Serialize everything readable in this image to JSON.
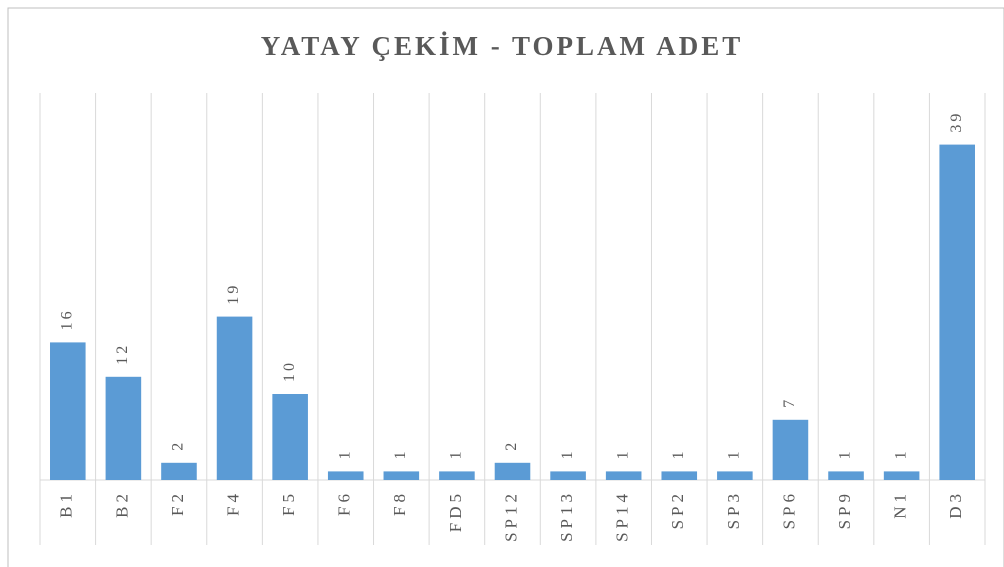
{
  "chart_data": {
    "type": "bar",
    "title": "YATAY ÇEKİM - TOPLAM ADET",
    "categories": [
      "B1",
      "B2",
      "F2",
      "F4",
      "F5",
      "F6",
      "F8",
      "FD5",
      "SP12",
      "SP13",
      "SP14",
      "SP2",
      "SP3",
      "SP6",
      "SP9",
      "N1",
      "D3"
    ],
    "values": [
      16,
      12,
      2,
      19,
      10,
      1,
      1,
      1,
      2,
      1,
      1,
      1,
      1,
      7,
      1,
      1,
      39
    ],
    "color": "#5b9bd5",
    "ylim": [
      0,
      45
    ]
  }
}
